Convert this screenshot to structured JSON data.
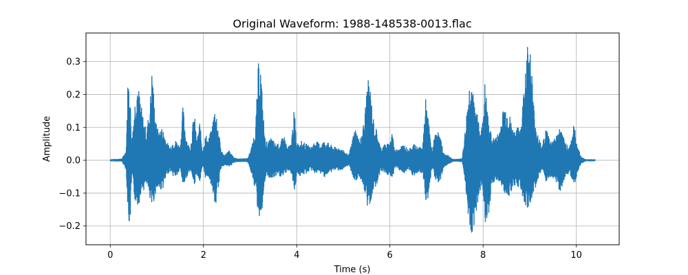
{
  "chart_data": {
    "type": "line",
    "title": "Original Waveform: 1988-148538-0013.flac",
    "xlabel": "Time (s)",
    "ylabel": "Amplitude",
    "xlim": [
      -0.52,
      10.92
    ],
    "ylim": [
      -0.257,
      0.387
    ],
    "xticks": [
      0,
      2,
      4,
      6,
      8,
      10
    ],
    "xtick_labels": [
      "0",
      "2",
      "4",
      "6",
      "8",
      "10"
    ],
    "yticks": [
      -0.2,
      -0.1,
      0.0,
      0.1,
      0.2,
      0.3
    ],
    "ytick_labels": [
      "−0.2",
      "−0.1",
      "0.0",
      "0.1",
      "0.2",
      "0.3"
    ],
    "grid": true,
    "legend": "none",
    "series": [
      {
        "color": "#1f77b4",
        "x": [
          0.0,
          0.25,
          0.34,
          0.38,
          0.42,
          0.46,
          0.52,
          0.58,
          0.62,
          0.66,
          0.72,
          0.78,
          0.85,
          0.9,
          0.95,
          1.0,
          1.05,
          1.1,
          1.15,
          1.2,
          1.28,
          1.35,
          1.42,
          1.5,
          1.56,
          1.62,
          1.67,
          1.72,
          1.8,
          1.86,
          1.92,
          1.98,
          2.05,
          2.1,
          2.18,
          2.25,
          2.3,
          2.38,
          2.45,
          2.55,
          2.65,
          2.75,
          2.85,
          2.95,
          3.05,
          3.12,
          3.18,
          3.23,
          3.27,
          3.32,
          3.38,
          3.45,
          3.55,
          3.65,
          3.72,
          3.8,
          3.88,
          3.95,
          4.0,
          4.08,
          4.2,
          4.3,
          4.4,
          4.5,
          4.6,
          4.7,
          4.8,
          4.9,
          5.0,
          5.12,
          5.25,
          5.35,
          5.45,
          5.52,
          5.58,
          5.64,
          5.7,
          5.8,
          5.9,
          6.0,
          6.05,
          6.1,
          6.2,
          6.3,
          6.4,
          6.5,
          6.6,
          6.7,
          6.77,
          6.83,
          6.9,
          7.0,
          7.08,
          7.16,
          7.25,
          7.35,
          7.45,
          7.55,
          7.62,
          7.68,
          7.74,
          7.8,
          7.86,
          7.92,
          7.98,
          8.04,
          8.12,
          8.2,
          8.28,
          8.36,
          8.45,
          8.55,
          8.65,
          8.75,
          8.83,
          8.9,
          8.96,
          9.02,
          9.1,
          9.18,
          9.26,
          9.35,
          9.45,
          9.55,
          9.65,
          9.75,
          9.85,
          9.95,
          10.02,
          10.1,
          10.2,
          10.4
        ],
        "y_max": [
          0.002,
          0.004,
          0.03,
          0.25,
          0.24,
          0.05,
          0.17,
          0.25,
          0.21,
          0.17,
          0.12,
          0.09,
          0.17,
          0.29,
          0.16,
          0.1,
          0.09,
          0.1,
          0.09,
          0.06,
          0.04,
          0.06,
          0.06,
          0.04,
          0.17,
          0.08,
          0.05,
          0.04,
          0.15,
          0.06,
          0.12,
          0.03,
          0.08,
          0.06,
          0.1,
          0.17,
          0.12,
          0.03,
          0.015,
          0.03,
          0.008,
          0.004,
          0.005,
          0.005,
          0.05,
          0.11,
          0.3,
          0.29,
          0.17,
          0.07,
          0.05,
          0.07,
          0.05,
          0.05,
          0.08,
          0.04,
          0.05,
          0.16,
          0.05,
          0.06,
          0.05,
          0.04,
          0.06,
          0.05,
          0.06,
          0.05,
          0.04,
          0.04,
          0.03,
          0.015,
          0.1,
          0.06,
          0.12,
          0.25,
          0.22,
          0.13,
          0.1,
          0.04,
          0.05,
          0.05,
          0.1,
          0.03,
          0.04,
          0.05,
          0.03,
          0.05,
          0.04,
          0.04,
          0.19,
          0.12,
          0.03,
          0.1,
          0.07,
          0.02,
          0.015,
          0.003,
          0.003,
          0.005,
          0.1,
          0.2,
          0.28,
          0.18,
          0.15,
          0.12,
          0.1,
          0.24,
          0.11,
          0.07,
          0.07,
          0.1,
          0.17,
          0.15,
          0.09,
          0.1,
          0.12,
          0.3,
          0.36,
          0.34,
          0.14,
          0.08,
          0.04,
          0.1,
          0.06,
          0.07,
          0.1,
          0.06,
          0.04,
          0.11,
          0.05,
          0.01,
          0.002,
          0.002
        ],
        "y_min": [
          -0.002,
          -0.003,
          -0.03,
          -0.18,
          -0.21,
          -0.05,
          -0.12,
          -0.14,
          -0.13,
          -0.09,
          -0.09,
          -0.07,
          -0.13,
          -0.15,
          -0.11,
          -0.09,
          -0.09,
          -0.09,
          -0.08,
          -0.05,
          -0.03,
          -0.05,
          -0.05,
          -0.03,
          -0.08,
          -0.06,
          -0.04,
          -0.03,
          -0.08,
          -0.04,
          -0.07,
          -0.02,
          -0.06,
          -0.05,
          -0.08,
          -0.15,
          -0.1,
          -0.02,
          -0.015,
          -0.02,
          -0.007,
          -0.004,
          -0.004,
          -0.005,
          -0.05,
          -0.1,
          -0.18,
          -0.16,
          -0.14,
          -0.06,
          -0.05,
          -0.06,
          -0.05,
          -0.05,
          -0.05,
          -0.03,
          -0.04,
          -0.1,
          -0.04,
          -0.05,
          -0.04,
          -0.03,
          -0.04,
          -0.04,
          -0.05,
          -0.04,
          -0.03,
          -0.03,
          -0.03,
          -0.015,
          -0.07,
          -0.05,
          -0.1,
          -0.15,
          -0.13,
          -0.09,
          -0.08,
          -0.03,
          -0.04,
          -0.05,
          -0.06,
          -0.02,
          -0.03,
          -0.04,
          -0.03,
          -0.05,
          -0.04,
          -0.04,
          -0.13,
          -0.11,
          -0.02,
          -0.07,
          -0.06,
          -0.02,
          -0.012,
          -0.003,
          -0.003,
          -0.005,
          -0.08,
          -0.17,
          -0.23,
          -0.2,
          -0.15,
          -0.1,
          -0.07,
          -0.21,
          -0.16,
          -0.07,
          -0.06,
          -0.07,
          -0.1,
          -0.11,
          -0.08,
          -0.08,
          -0.1,
          -0.16,
          -0.15,
          -0.13,
          -0.09,
          -0.06,
          -0.03,
          -0.07,
          -0.05,
          -0.06,
          -0.1,
          -0.05,
          -0.04,
          -0.08,
          -0.04,
          -0.01,
          -0.002,
          -0.002
        ]
      }
    ]
  }
}
